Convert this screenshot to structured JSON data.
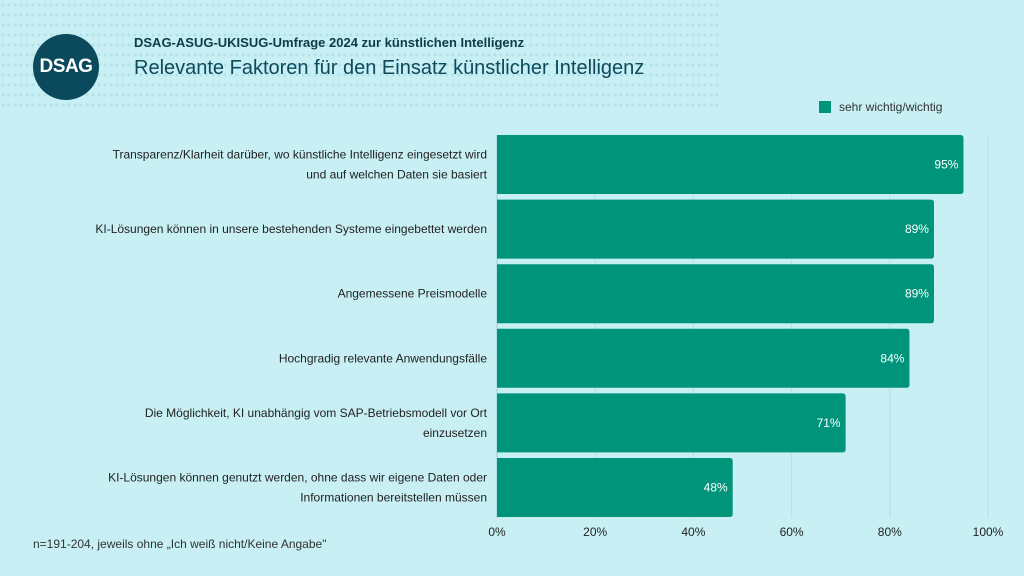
{
  "header": {
    "logo": "DSAG",
    "supertitle": "DSAG-ASUG-UKISUG-Umfrage 2024 zur künstlichen Intelligenz",
    "title": "Relevante Faktoren für den Einsatz künstlicher Intelligenz"
  },
  "footnote": "n=191-204, jeweils ohne „Ich weiß nicht/Keine Angabe\"",
  "chart_data": {
    "type": "bar",
    "orientation": "horizontal",
    "categories": [
      [
        "Transparenz/Klarheit darüber, wo künstliche Intelligenz eingesetzt wird",
        "und auf welchen Daten sie basiert"
      ],
      [
        "KI-Lösungen können in unsere bestehenden Systeme eingebettet werden"
      ],
      [
        "Angemessene Preismodelle"
      ],
      [
        "Hochgradig relevante Anwendungsfälle"
      ],
      [
        "Die Möglichkeit, KI unabhängig vom SAP-Betriebsmodell vor Ort",
        "einzusetzen"
      ],
      [
        "KI-Lösungen können genutzt werden, ohne dass wir eigene Daten oder",
        "Informationen bereitstellen müssen"
      ]
    ],
    "series": [
      {
        "name": "sehr wichtig/wichtig",
        "values": [
          95,
          89,
          89,
          84,
          71,
          48
        ],
        "color": "#00947a"
      }
    ],
    "data_labels": [
      "95%",
      "89%",
      "89%",
      "84%",
      "71%",
      "48%"
    ],
    "xlim": [
      0,
      100
    ],
    "xticks": [
      "0%",
      "20%",
      "40%",
      "60%",
      "80%",
      "100%"
    ],
    "grid": true,
    "legend": "top-right"
  }
}
